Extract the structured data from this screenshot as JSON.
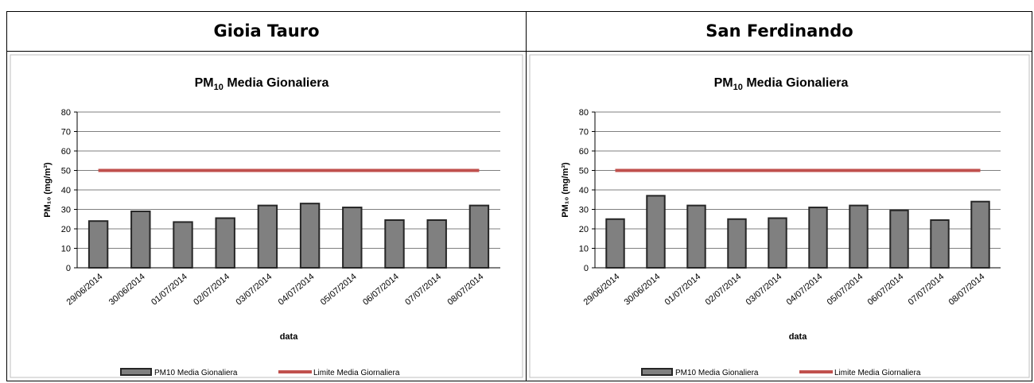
{
  "headers": {
    "left": "Gioia Tauro",
    "right": "San Ferdinando"
  },
  "colors": {
    "bar_fill": "#808080",
    "bar_stroke": "#262626",
    "limit_line": "#c0504d",
    "grid": "#a6a6a6"
  },
  "chart_data": [
    {
      "type": "bar",
      "title_main": "PM",
      "title_sub": "10",
      "title_rest": " Media Gionaliera",
      "ylabel": "PM₁₀ (mg/m³)",
      "xlabel": "data",
      "ylim": [
        0,
        80
      ],
      "yticks": [
        "0",
        "10",
        "20",
        "30",
        "40",
        "50",
        "60",
        "70",
        "80"
      ],
      "categories": [
        "29/06/2014",
        "30/06/2014",
        "01/07/2014",
        "02/07/2014",
        "03/07/2014",
        "04/07/2014",
        "05/07/2014",
        "06/07/2014",
        "07/07/2014",
        "08/07/2014"
      ],
      "series": [
        {
          "name": "PM10 Media Gionaliera",
          "values": [
            24,
            29,
            23.5,
            25.5,
            32,
            33,
            31,
            24.5,
            24.5,
            32
          ]
        },
        {
          "name": "Limite Media Giornaliera",
          "values": [
            50,
            50,
            50,
            50,
            50,
            50,
            50,
            50,
            50,
            50
          ]
        }
      ],
      "legend_position": "bottom",
      "grid": true
    },
    {
      "type": "bar",
      "title_main": "PM",
      "title_sub": "10",
      "title_rest": " Media Gionaliera",
      "ylabel": "PM₁₀ (mg/m³)",
      "xlabel": "data",
      "ylim": [
        0,
        80
      ],
      "yticks": [
        "0",
        "10",
        "20",
        "30",
        "40",
        "50",
        "60",
        "70",
        "80"
      ],
      "categories": [
        "29/06/2014",
        "30/06/2014",
        "01/07/2014",
        "02/07/2014",
        "03/07/2014",
        "04/07/2014",
        "05/07/2014",
        "06/07/2014",
        "07/07/2014",
        "08/07/2014"
      ],
      "series": [
        {
          "name": "PM10 Media Gionaliera",
          "values": [
            25,
            37,
            32,
            25,
            25.5,
            31,
            32,
            29.5,
            24.5,
            34
          ]
        },
        {
          "name": "Limite Media Giornaliera",
          "values": [
            50,
            50,
            50,
            50,
            50,
            50,
            50,
            50,
            50,
            50
          ]
        }
      ],
      "legend_position": "bottom",
      "grid": true
    }
  ]
}
